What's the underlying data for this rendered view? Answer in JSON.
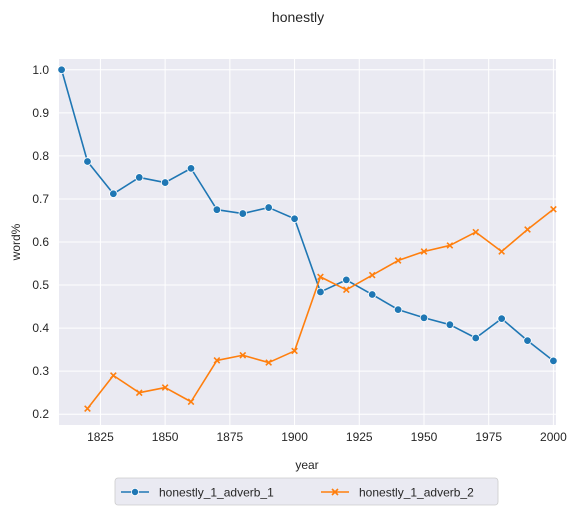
{
  "chart_data": {
    "type": "line",
    "title": "honestly",
    "xlabel": "year",
    "ylabel": "word%",
    "xlim": [
      1809,
      2001
    ],
    "ylim": [
      0.175,
      1.025
    ],
    "xticks": [
      1825,
      1850,
      1875,
      1900,
      1925,
      1950,
      1975,
      2000
    ],
    "yticks": [
      0.2,
      0.3,
      0.4,
      0.5,
      0.6,
      0.7,
      0.8,
      0.9,
      1.0
    ],
    "ytick_labels": [
      "0.2",
      "0.3",
      "0.4",
      "0.5",
      "0.6",
      "0.7",
      "0.8",
      "0.9",
      "1.0"
    ],
    "grid": true,
    "legend_position": "bottom-center",
    "series": [
      {
        "name": "honestly_1_adverb_1",
        "color": "#1f77b4",
        "marker": "circle",
        "x": [
          1810,
          1820,
          1830,
          1840,
          1850,
          1860,
          1870,
          1880,
          1890,
          1900,
          1910,
          1920,
          1930,
          1940,
          1950,
          1960,
          1970,
          1980,
          1990,
          2000
        ],
        "y": [
          1.0,
          0.787,
          0.712,
          0.75,
          0.738,
          0.771,
          0.675,
          0.666,
          0.68,
          0.654,
          0.484,
          0.512,
          0.478,
          0.443,
          0.424,
          0.408,
          0.377,
          0.422,
          0.371,
          0.324
        ]
      },
      {
        "name": "honestly_1_adverb_2",
        "color": "#ff7f0e",
        "marker": "x",
        "x": [
          1820,
          1830,
          1840,
          1850,
          1860,
          1870,
          1880,
          1890,
          1900,
          1910,
          1920,
          1930,
          1940,
          1950,
          1960,
          1970,
          1980,
          1990,
          2000
        ],
        "y": [
          0.213,
          0.29,
          0.25,
          0.262,
          0.229,
          0.325,
          0.337,
          0.32,
          0.347,
          0.519,
          0.489,
          0.523,
          0.557,
          0.578,
          0.592,
          0.623,
          0.578,
          0.629,
          0.676
        ]
      }
    ]
  }
}
